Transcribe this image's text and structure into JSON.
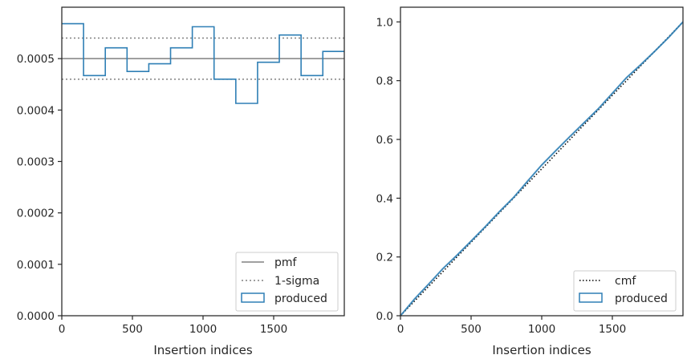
{
  "chart_data": [
    {
      "type": "step",
      "title": "",
      "xlabel": "Insertion indices",
      "ylabel": "",
      "xlim": [
        0,
        2000
      ],
      "ylim": [
        0,
        0.0006
      ],
      "xticks": [
        0,
        500,
        1000,
        1500
      ],
      "xtick_labels": [
        "0",
        "500",
        "1000",
        "1500"
      ],
      "yticks": [
        0,
        0.0001,
        0.0002,
        0.0003,
        0.0004,
        0.0005
      ],
      "ytick_labels": [
        "0.0000",
        "0.0001",
        "0.0002",
        "0.0003",
        "0.0004",
        "0.0005"
      ],
      "grid": false,
      "legend": {
        "placement": "lower-right",
        "entries": [
          "pmf",
          "1-sigma",
          "produced"
        ]
      },
      "pmf": {
        "name": "pmf",
        "value": 0.0005,
        "color": "#808080"
      },
      "sigma": {
        "name": "1-sigma",
        "lower": 0.00046,
        "upper": 0.00054,
        "color": "#808080"
      },
      "series": [
        {
          "name": "produced",
          "color": "#2f7fb5",
          "bin_edges": [
            0,
            154,
            308,
            462,
            616,
            770,
            924,
            1078,
            1232,
            1386,
            1540,
            1694,
            1848,
            2000
          ],
          "values": [
            0.000568,
            0.000467,
            0.000521,
            0.000475,
            0.00049,
            0.000521,
            0.000562,
            0.00046,
            0.000413,
            0.000493,
            0.000546,
            0.000467,
            0.000514
          ]
        }
      ]
    },
    {
      "type": "line",
      "title": "",
      "xlabel": "Insertion indices",
      "ylabel": "",
      "xlim": [
        0,
        2000
      ],
      "ylim": [
        0,
        1.05
      ],
      "xticks": [
        0,
        500,
        1000,
        1500
      ],
      "xtick_labels": [
        "0",
        "500",
        "1000",
        "1500"
      ],
      "yticks": [
        0,
        0.2,
        0.4,
        0.6,
        0.8,
        1.0
      ],
      "ytick_labels": [
        "0.0",
        "0.2",
        "0.4",
        "0.6",
        "0.8",
        "1.0"
      ],
      "grid": false,
      "legend": {
        "placement": "lower-right",
        "entries": [
          "cmf",
          "produced"
        ]
      },
      "series": [
        {
          "name": "cmf",
          "color": "#000000",
          "x": [
            0,
            2000
          ],
          "y": [
            0,
            1.0
          ]
        },
        {
          "name": "produced",
          "color": "#2f7fb5",
          "x": [
            0,
            100,
            200,
            300,
            400,
            500,
            600,
            700,
            800,
            900,
            1000,
            1100,
            1200,
            1300,
            1400,
            1500,
            1600,
            1700,
            1800,
            1900,
            2000
          ],
          "y": [
            0,
            0.057,
            0.108,
            0.16,
            0.206,
            0.254,
            0.303,
            0.354,
            0.402,
            0.458,
            0.513,
            0.562,
            0.61,
            0.657,
            0.704,
            0.757,
            0.81,
            0.854,
            0.9,
            0.948,
            1.0
          ]
        }
      ]
    }
  ]
}
